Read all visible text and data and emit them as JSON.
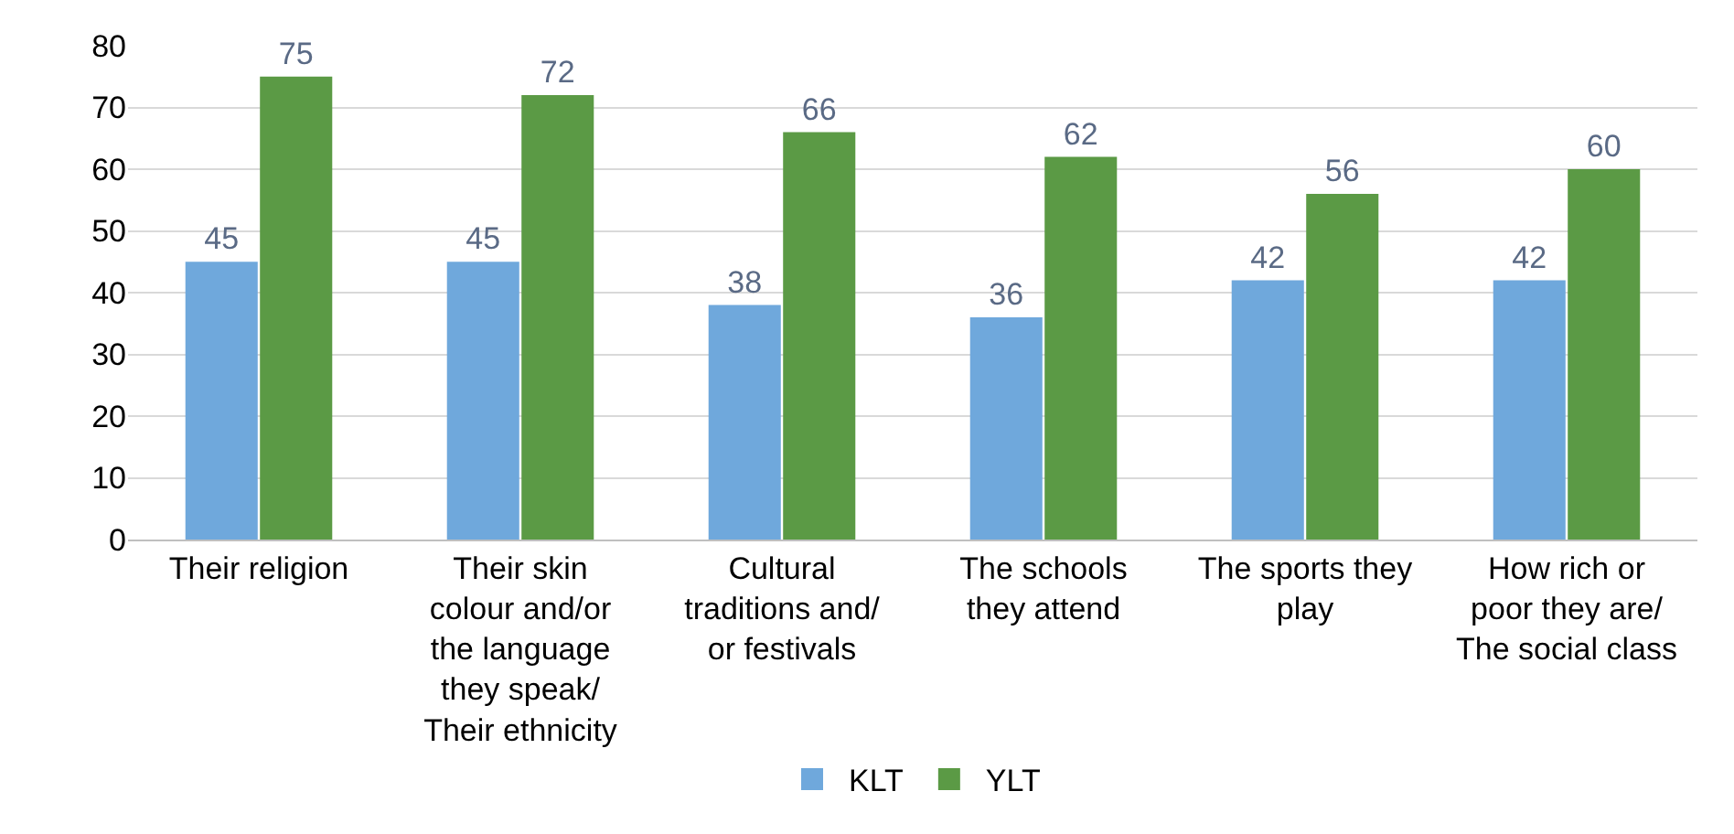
{
  "chart_data": {
    "type": "bar",
    "categories": [
      "Their religion",
      "Their skin\ncolour and/or\nthe language\nthey speak/\nTheir ethnicity",
      "Cultural\ntraditions and/\nor festivals",
      "The schools\nthey attend",
      "The sports they\nplay",
      "How rich or\npoor they are/\nThe social class"
    ],
    "series": [
      {
        "name": "KLT",
        "color": "#6fa8dc",
        "values": [
          45,
          45,
          38,
          36,
          42,
          42
        ]
      },
      {
        "name": "YLT",
        "color": "#5b9a45",
        "values": [
          75,
          72,
          66,
          62,
          56,
          60
        ]
      }
    ],
    "ylim": [
      0,
      80
    ],
    "yticks": [
      0,
      10,
      20,
      30,
      40,
      50,
      60,
      70,
      80
    ],
    "grid": "y",
    "legend": "bottom",
    "data_labels": true
  }
}
